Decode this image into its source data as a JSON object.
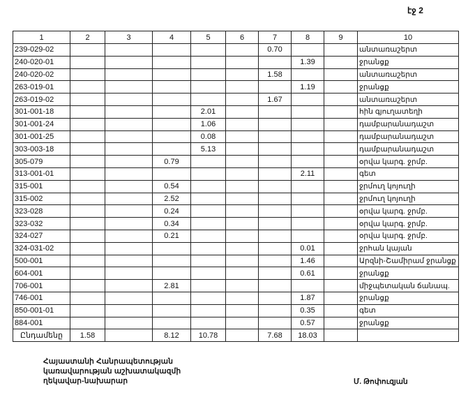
{
  "page_number": "էջ 2",
  "table": {
    "headers": [
      "1",
      "2",
      "3",
      "4",
      "5",
      "6",
      "7",
      "8",
      "9",
      "10"
    ],
    "rows": [
      [
        "239-029-02",
        "",
        "",
        "",
        "",
        "",
        "0.70",
        "",
        "",
        "անտառաշերտ"
      ],
      [
        "240-020-01",
        "",
        "",
        "",
        "",
        "",
        "",
        "1.39",
        "",
        "ջրանցք"
      ],
      [
        "240-020-02",
        "",
        "",
        "",
        "",
        "",
        "1.58",
        "",
        "",
        "անտառաշերտ"
      ],
      [
        "263-019-01",
        "",
        "",
        "",
        "",
        "",
        "",
        "1.19",
        "",
        "ջրանցք"
      ],
      [
        "263-019-02",
        "",
        "",
        "",
        "",
        "",
        "1.67",
        "",
        "",
        "անտառաշերտ"
      ],
      [
        "301-001-18",
        "",
        "",
        "",
        "2.01",
        "",
        "",
        "",
        "",
        "հին գյուղատեղի"
      ],
      [
        "301-001-24",
        "",
        "",
        "",
        "1.06",
        "",
        "",
        "",
        "",
        "դամբարանադաշտ"
      ],
      [
        "301-001-25",
        "",
        "",
        "",
        "0.08",
        "",
        "",
        "",
        "",
        "դամբարանադաշտ"
      ],
      [
        "303-003-18",
        "",
        "",
        "",
        "5.13",
        "",
        "",
        "",
        "",
        "դամբարանադաշտ"
      ],
      [
        "305-079",
        "",
        "",
        "0.79",
        "",
        "",
        "",
        "",
        "",
        "օրվա կարգ. ջրմբ."
      ],
      [
        "313-001-01",
        "",
        "",
        "",
        "",
        "",
        "",
        "2.11",
        "",
        "գետ"
      ],
      [
        "315-001",
        "",
        "",
        "0.54",
        "",
        "",
        "",
        "",
        "",
        "ջրմուղ կոյուղի"
      ],
      [
        "315-002",
        "",
        "",
        "2.52",
        "",
        "",
        "",
        "",
        "",
        "ջրմուղ կոյուղի"
      ],
      [
        "323-028",
        "",
        "",
        "0.24",
        "",
        "",
        "",
        "",
        "",
        "օրվա կարգ. ջրմբ."
      ],
      [
        "323-032",
        "",
        "",
        "0.34",
        "",
        "",
        "",
        "",
        "",
        "օրվա կարգ. ջրմբ."
      ],
      [
        "324-027",
        "",
        "",
        "0.21",
        "",
        "",
        "",
        "",
        "",
        "օրվա կարգ. ջրմբ."
      ],
      [
        "324-031-02",
        "",
        "",
        "",
        "",
        "",
        "",
        "0.01",
        "",
        "ջրհան կայան"
      ],
      [
        "500-001",
        "",
        "",
        "",
        "",
        "",
        "",
        "1.46",
        "",
        "Արզնի-Շամիրամ ջրանցք"
      ],
      [
        "604-001",
        "",
        "",
        "",
        "",
        "",
        "",
        "0.61",
        "",
        "ջրանցք"
      ],
      [
        "706-001",
        "",
        "",
        "2.81",
        "",
        "",
        "",
        "",
        "",
        "միջպետական ճանապ."
      ],
      [
        "746-001",
        "",
        "",
        "",
        "",
        "",
        "",
        "1.87",
        "",
        "ջրանցք"
      ],
      [
        "850-001-01",
        "",
        "",
        "",
        "",
        "",
        "",
        "0.35",
        "",
        "գետ"
      ],
      [
        "884-001",
        "",
        "",
        "",
        "",
        "",
        "",
        "0.57",
        "",
        "ջրանցք"
      ]
    ],
    "total": [
      "Ընդամենը",
      "1.58",
      "",
      "8.12",
      "10.78",
      "",
      "7.68",
      "18.03",
      "",
      ""
    ]
  },
  "footer": {
    "lines": [
      "Հայաստանի Հանրապետության",
      "կառավարության աշխատակազմի",
      "ղեկավար-նախարար"
    ],
    "signature": "Մ. Թոփուզյան"
  }
}
